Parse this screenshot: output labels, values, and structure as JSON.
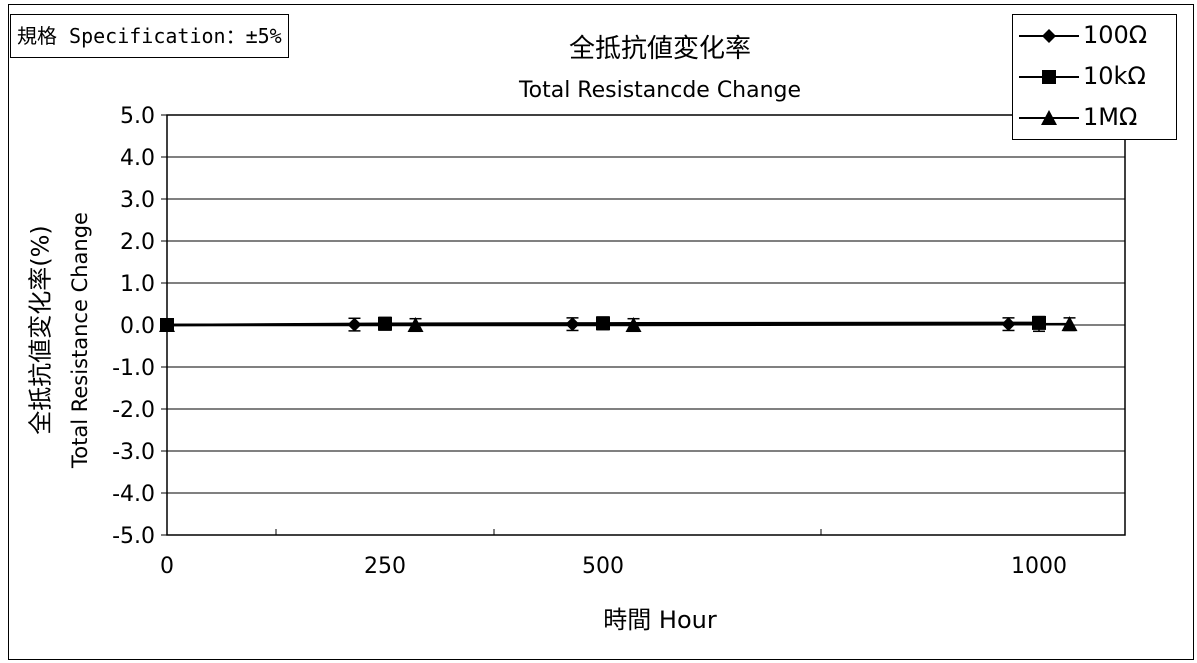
{
  "spec_label": "規格 Specification：±5%",
  "chart_data": {
    "type": "line",
    "title": "全抵抗値変化率",
    "subtitle": "Total Resistancde Change",
    "xlabel": "時間 Hour",
    "ylabel": "全抵抗値変化率(%)",
    "ylabel2": "Total Resistance Change",
    "xlim": [
      0,
      1100
    ],
    "ylim": [
      -5.0,
      5.0
    ],
    "x_ticks": [
      0,
      250,
      500,
      1000
    ],
    "x_tick_labels": [
      "0",
      "250",
      "500",
      "1000"
    ],
    "y_ticks": [
      5.0,
      4.0,
      3.0,
      2.0,
      1.0,
      0.0,
      -1.0,
      -2.0,
      -3.0,
      -4.0,
      -5.0
    ],
    "y_tick_labels": [
      "5.0",
      "4.0",
      "3.0",
      "2.0",
      "1.0",
      "0.0",
      "-1.0",
      "-2.0",
      "-3.0",
      "-4.0",
      "-5.0"
    ],
    "grid": "horizontal",
    "legend_position": "top-right",
    "series": [
      {
        "name": "100Ω",
        "marker": "diamond",
        "x": [
          0,
          250,
          500,
          1000
        ],
        "y": [
          0.0,
          0.01,
          0.02,
          0.02
        ],
        "err_low": [
          0.0,
          0.15,
          0.15,
          0.15
        ],
        "err_high": [
          0.0,
          0.15,
          0.15,
          0.15
        ]
      },
      {
        "name": "10kΩ",
        "marker": "square",
        "x": [
          0,
          250,
          500,
          1000
        ],
        "y": [
          0.0,
          0.03,
          0.04,
          0.05
        ],
        "err_low": [
          0.0,
          0.15,
          0.15,
          0.2
        ],
        "err_high": [
          0.0,
          0.15,
          0.15,
          0.15
        ]
      },
      {
        "name": "1MΩ",
        "marker": "triangle",
        "x": [
          0,
          250,
          500,
          1000
        ],
        "y": [
          0.0,
          0.0,
          0.0,
          0.02
        ],
        "err_low": [
          0.0,
          0.15,
          0.15,
          0.15
        ],
        "err_high": [
          0.0,
          0.15,
          0.15,
          0.15
        ]
      }
    ]
  }
}
